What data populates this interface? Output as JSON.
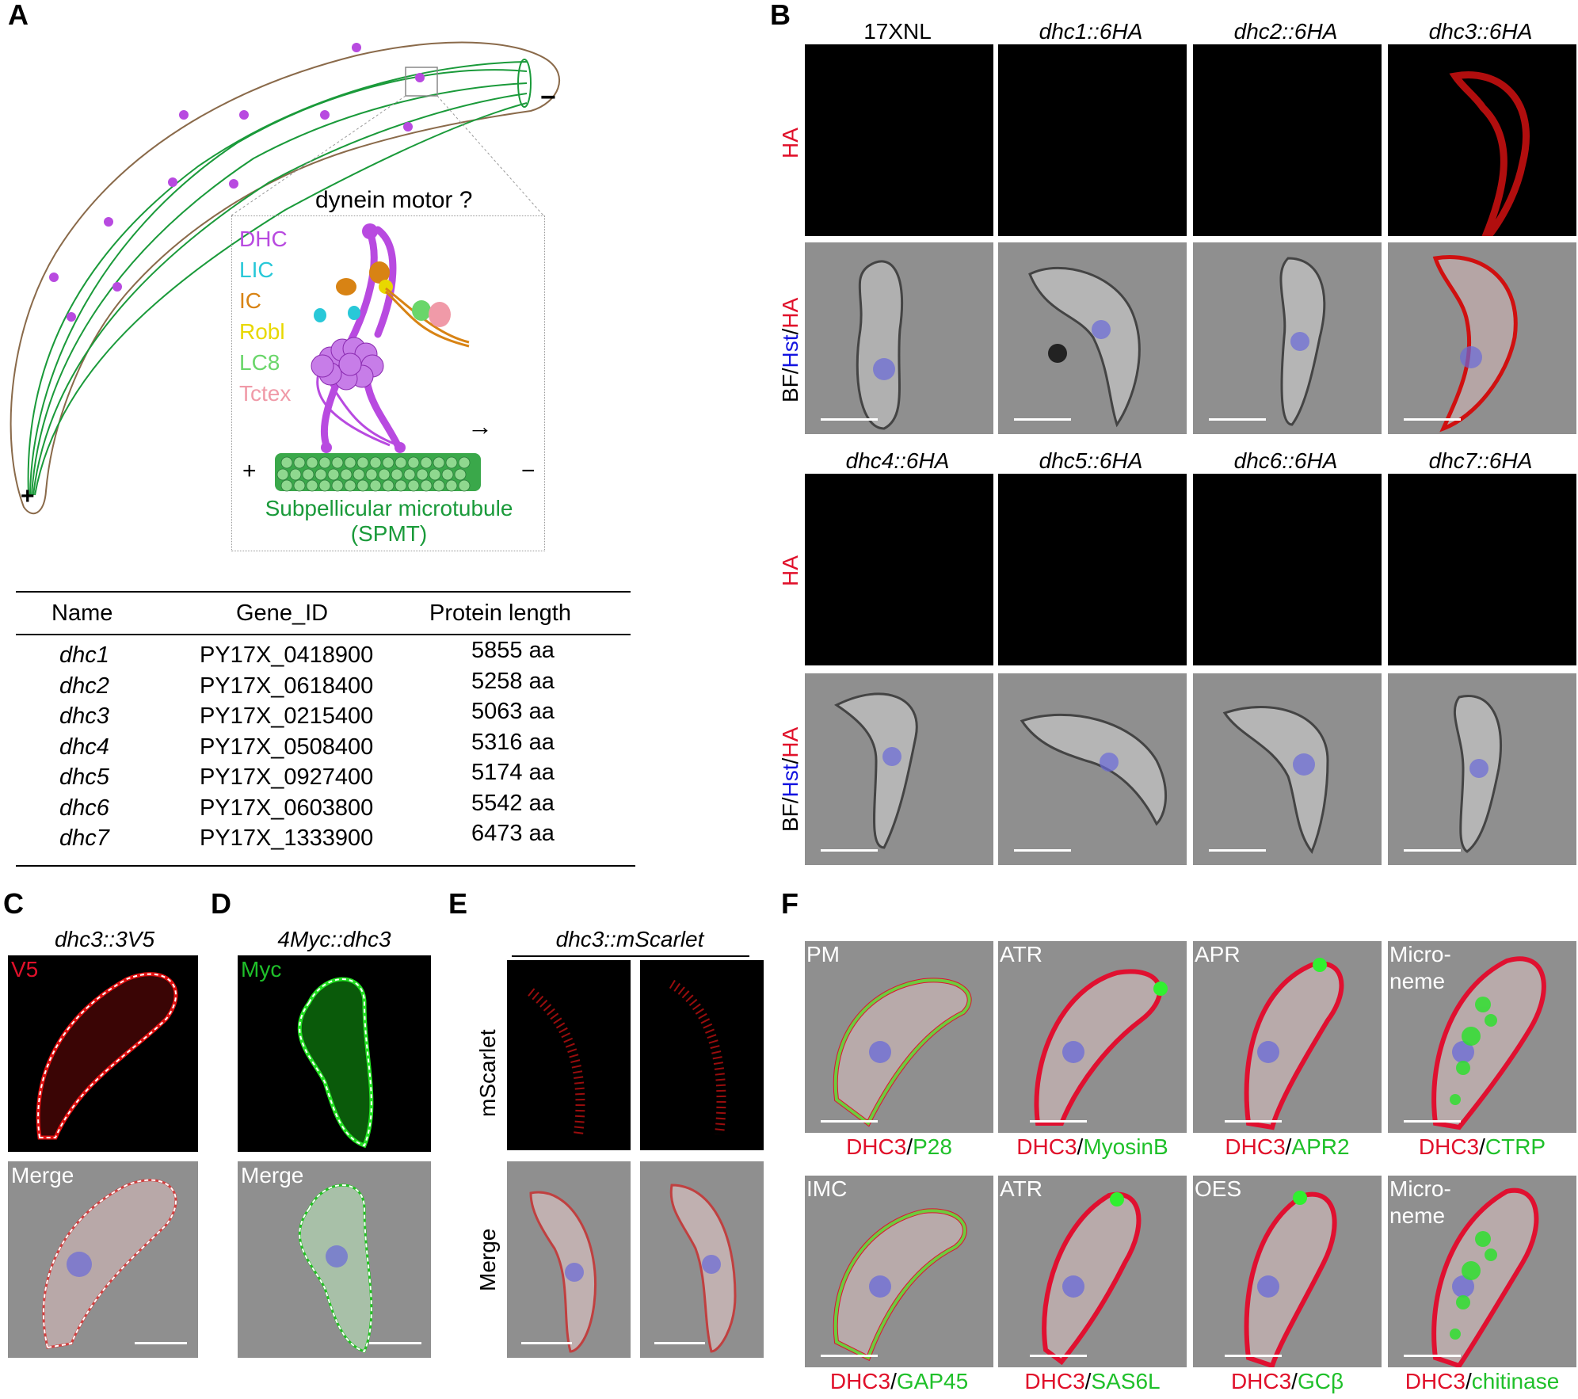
{
  "panels": {
    "A": "A",
    "B": "B",
    "C": "C",
    "D": "D",
    "E": "E",
    "F": "F"
  },
  "panelA": {
    "minus_end": "−",
    "plus_end": "+",
    "inset_title": "dynein motor ?",
    "legend": [
      "DHC",
      "LIC",
      "IC",
      "Robl",
      "LC8",
      "Tctex"
    ],
    "legend_colors": [
      "#b84ae0",
      "#28c8d8",
      "#d88314",
      "#e8d800",
      "#6ad66a",
      "#f09aa8"
    ],
    "mt_plus": "+",
    "mt_minus": "−",
    "arrow": "→",
    "mt_label_1": "Subpellicular microtubule",
    "mt_label_2": "(SPMT)"
  },
  "table": {
    "headers": [
      "Name",
      "Gene_ID",
      "Protein length"
    ],
    "rows": [
      [
        "dhc1",
        "PY17X_0418900",
        "5855 aa"
      ],
      [
        "dhc2",
        "PY17X_0618400",
        "5258 aa"
      ],
      [
        "dhc3",
        "PY17X_0215400",
        "5063 aa"
      ],
      [
        "dhc4",
        "PY17X_0508400",
        "5316 aa"
      ],
      [
        "dhc5",
        "PY17X_0927400",
        "5174 aa"
      ],
      [
        "dhc6",
        "PY17X_0603800",
        "5542 aa"
      ],
      [
        "dhc7",
        "PY17X_1333900",
        "6473 aa"
      ]
    ]
  },
  "panelB": {
    "top_cols": [
      "17XNL",
      "dhc1::6HA",
      "dhc2::6HA",
      "dhc3::6HA"
    ],
    "bottom_cols": [
      "dhc4::6HA",
      "dhc5::6HA",
      "dhc6::6HA",
      "dhc7::6HA"
    ],
    "row_ha": "HA",
    "row_merge_bf": "BF",
    "row_merge_sep": "/",
    "row_merge_hst": "Hst",
    "row_merge_ha": "HA"
  },
  "panelC": {
    "title": "dhc3::3V5",
    "channel": "V5",
    "merge": "Merge"
  },
  "panelD": {
    "title": "4Myc::dhc3",
    "channel": "Myc",
    "merge": "Merge"
  },
  "panelE": {
    "title": "dhc3::mScarlet",
    "row1": "mScarlet",
    "row2": "Merge"
  },
  "panelF": {
    "tiles": [
      {
        "loc": "PM",
        "marker": "P28"
      },
      {
        "loc": "ATR",
        "marker": "MyosinB"
      },
      {
        "loc": "APR",
        "marker": "APR2"
      },
      {
        "loc": "Micro-\nneme",
        "marker": "CTRP"
      },
      {
        "loc": "IMC",
        "marker": "GAP45"
      },
      {
        "loc": "ATR",
        "marker": "SAS6L"
      },
      {
        "loc": "OES",
        "marker": "GCβ"
      },
      {
        "loc": "Micro-\nneme",
        "marker": "chitinase"
      }
    ],
    "protein": "DHC3",
    "sep": "/"
  }
}
